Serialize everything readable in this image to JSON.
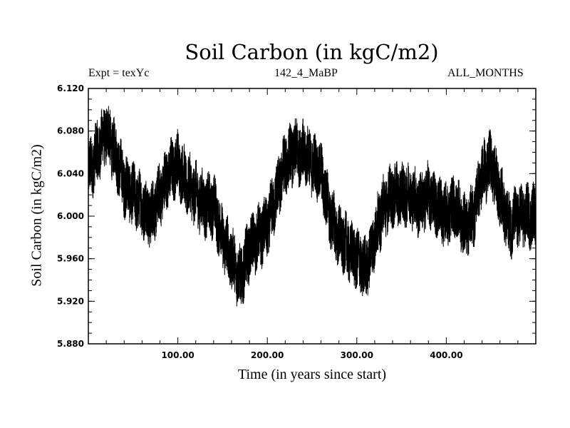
{
  "chart_data": {
    "type": "line",
    "title": "Soil Carbon (in kgC/m2)",
    "subtitle_left": "Expt = texYc",
    "subtitle_center": "142_4_MaBP",
    "subtitle_right": "ALL_MONTHS",
    "xlabel": "Time (in years since start)",
    "ylabel": "Soil Carbon (in kgC/m2)",
    "xlim": [
      0,
      500
    ],
    "ylim": [
      5.88,
      6.12
    ],
    "xticks": [
      100,
      200,
      300,
      400
    ],
    "xtick_labels": [
      "100.00",
      "200.00",
      "300.00",
      "400.00"
    ],
    "yticks": [
      5.88,
      5.92,
      5.96,
      6.0,
      6.04,
      6.08,
      6.12
    ],
    "ytick_labels": [
      "5.880",
      "5.920",
      "5.960",
      "6.000",
      "6.040",
      "6.080",
      "6.120"
    ],
    "grid": false,
    "line_color": "#000000",
    "series": [
      {
        "x": [
          0,
          10,
          20,
          30,
          40,
          50,
          60,
          70,
          80,
          90,
          100,
          110,
          120,
          130,
          140,
          150,
          160,
          170,
          180,
          190,
          200,
          210,
          220,
          230,
          240,
          250,
          260,
          270,
          280,
          290,
          300,
          310,
          320,
          330,
          340,
          350,
          360,
          370,
          380,
          390,
          400,
          410,
          420,
          430,
          440,
          450,
          460,
          470,
          480,
          490,
          500
        ],
        "values": [
          6.04,
          6.06,
          6.08,
          6.06,
          6.03,
          6.02,
          6.01,
          6.0,
          6.02,
          6.04,
          6.05,
          6.03,
          6.02,
          6.01,
          6.01,
          5.98,
          5.96,
          5.94,
          5.97,
          5.98,
          5.99,
          6.02,
          6.05,
          6.06,
          6.06,
          6.05,
          6.04,
          6.0,
          5.98,
          5.97,
          5.96,
          5.95,
          5.98,
          6.01,
          6.02,
          6.02,
          6.02,
          6.01,
          6.02,
          6.01,
          6.0,
          6.01,
          5.99,
          6.0,
          6.04,
          6.05,
          6.02,
          5.99,
          6.0,
          6.0,
          6.0
        ],
        "noise_amplitude": 0.025
      }
    ]
  }
}
